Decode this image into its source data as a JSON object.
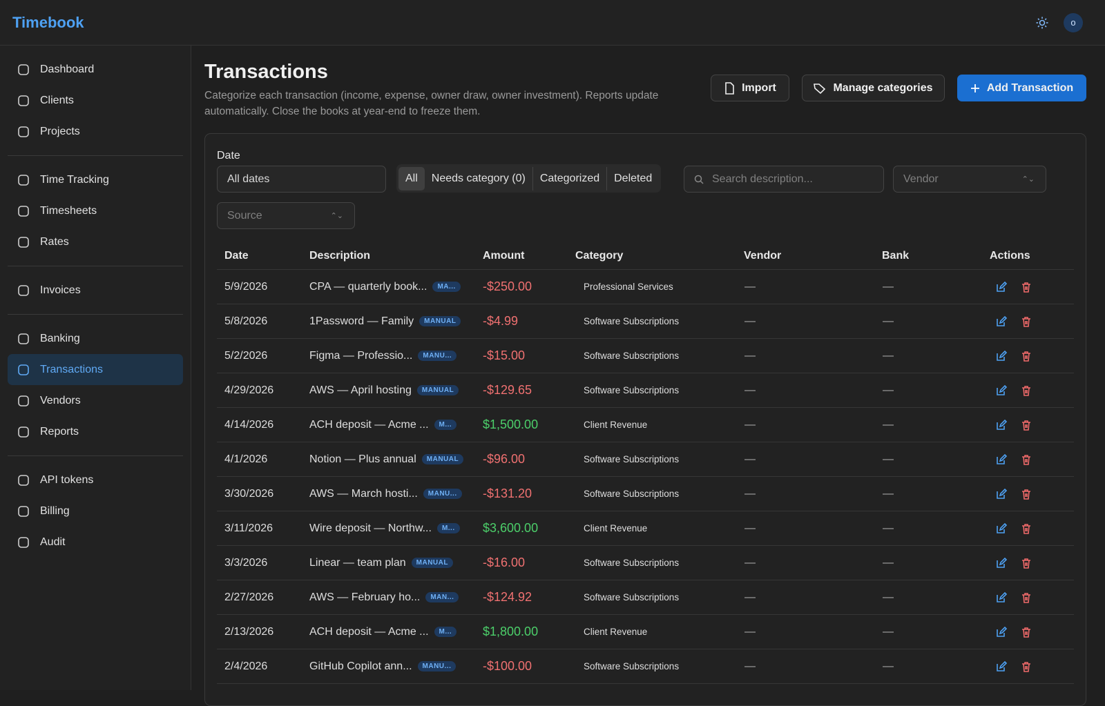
{
  "header": {
    "brand": "Timebook",
    "avatar": "o"
  },
  "sidebar": {
    "groups": [
      [
        {
          "label": "Dashboard"
        },
        {
          "label": "Clients"
        },
        {
          "label": "Projects"
        }
      ],
      [
        {
          "label": "Time Tracking"
        },
        {
          "label": "Timesheets"
        },
        {
          "label": "Rates"
        }
      ],
      [
        {
          "label": "Invoices"
        }
      ],
      [
        {
          "label": "Banking"
        },
        {
          "label": "Transactions",
          "active": true
        },
        {
          "label": "Vendors"
        },
        {
          "label": "Reports"
        }
      ],
      [
        {
          "label": "API tokens"
        },
        {
          "label": "Billing"
        },
        {
          "label": "Audit"
        }
      ]
    ]
  },
  "page": {
    "title": "Transactions",
    "description": "Categorize each transaction (income, expense, owner draw, owner investment). Reports update automatically. Close the books at year-end to freeze them.",
    "buttons": [
      "Import",
      "Manage categories",
      "Add Transaction"
    ]
  },
  "filters": {
    "date_label": "Date",
    "date_value": "All dates",
    "tabs": [
      "All",
      "Needs category (0)",
      "Categorized",
      "Deleted"
    ],
    "search_placeholder": "Search description...",
    "vendor_placeholder": "Vendor",
    "source_placeholder": "Source"
  },
  "table": {
    "columns": [
      "Date",
      "Description",
      "Amount",
      "Category",
      "Vendor",
      "Bank",
      "Actions"
    ],
    "rows": [
      [
        "5/9/2026",
        "CPA — quarterly book...",
        "MA...",
        "-$250.00",
        "Professional Services",
        "—",
        "—"
      ],
      [
        "5/8/2026",
        "1Password — Family",
        "MANUAL",
        "-$4.99",
        "Software Subscriptions",
        "—",
        "—"
      ],
      [
        "5/2/2026",
        "Figma — Professio...",
        "MANU...",
        "-$15.00",
        "Software Subscriptions",
        "—",
        "—"
      ],
      [
        "4/29/2026",
        "AWS — April hosting",
        "MANUAL",
        "-$129.65",
        "Software Subscriptions",
        "—",
        "—"
      ],
      [
        "4/14/2026",
        "ACH deposit — Acme ...",
        "M...",
        "$1,500.00",
        "Client Revenue",
        "—",
        "—"
      ],
      [
        "4/1/2026",
        "Notion — Plus annual",
        "MANUAL",
        "-$96.00",
        "Software Subscriptions",
        "—",
        "—"
      ],
      [
        "3/30/2026",
        "AWS — March hosti...",
        "MANU...",
        "-$131.20",
        "Software Subscriptions",
        "—",
        "—"
      ],
      [
        "3/11/2026",
        "Wire deposit — Northw...",
        "M...",
        "$3,600.00",
        "Client Revenue",
        "—",
        "—"
      ],
      [
        "3/3/2026",
        "Linear — team plan",
        "MANUAL",
        "-$16.00",
        "Software Subscriptions",
        "—",
        "—"
      ],
      [
        "2/27/2026",
        "AWS — February ho...",
        "MAN...",
        "-$124.92",
        "Software Subscriptions",
        "—",
        "—"
      ],
      [
        "2/13/2026",
        "ACH deposit — Acme ...",
        "M...",
        "$1,800.00",
        "Client Revenue",
        "—",
        "—"
      ],
      [
        "2/4/2026",
        "GitHub Copilot ann...",
        "MANU...",
        "-$100.00",
        "Software Subscriptions",
        "—",
        "—"
      ]
    ]
  }
}
